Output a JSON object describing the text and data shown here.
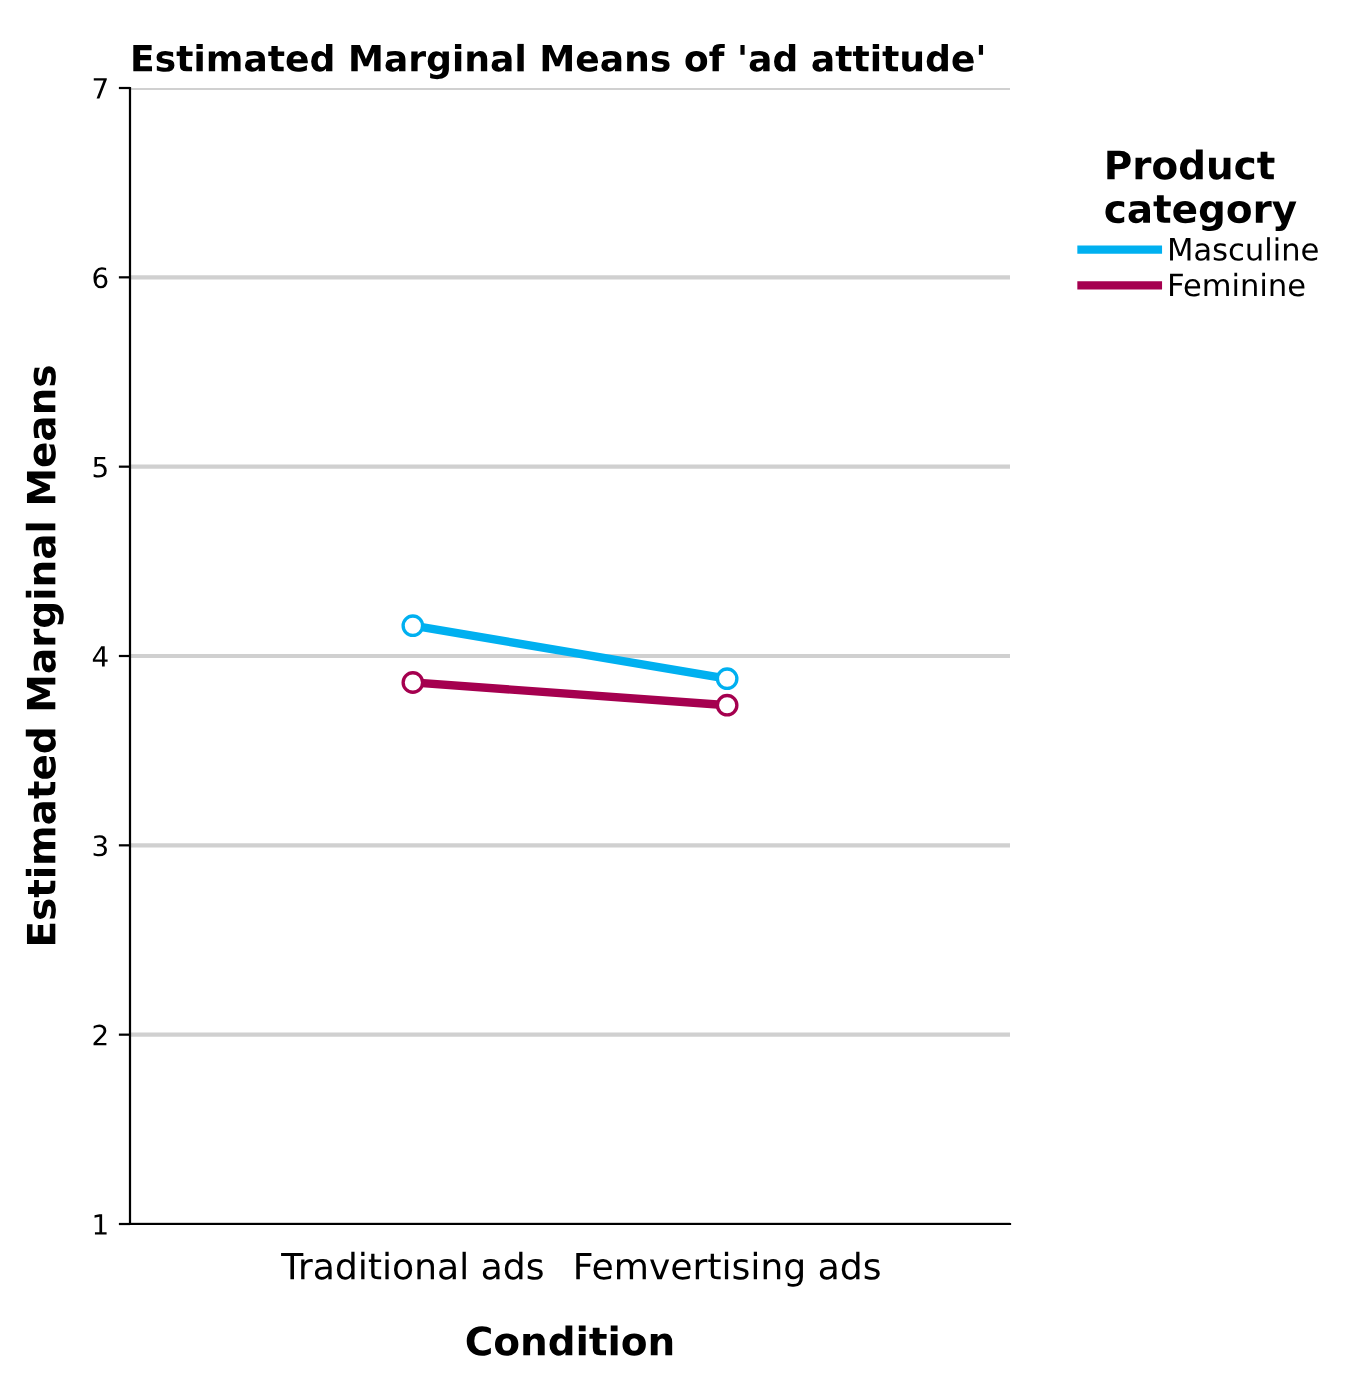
{
  "chart_data": {
    "type": "line",
    "title": "Estimated Marginal Means of 'ad attitude'",
    "xlabel": "Condition",
    "ylabel": "Estimated Marginal Means",
    "legend_title": "Product category",
    "categories": [
      "Traditional ads",
      "Femvertising ads"
    ],
    "series": [
      {
        "name": "Masculine",
        "color": "#00b0f0",
        "values": [
          4.16,
          3.88
        ]
      },
      {
        "name": "Feminine",
        "color": "#a5004f",
        "values": [
          3.86,
          3.74
        ]
      }
    ],
    "ylim": [
      1,
      7
    ],
    "yticks": [
      1,
      2,
      3,
      4,
      5,
      6,
      7
    ],
    "grid": "y",
    "legend": "top right",
    "marker": "circle",
    "line_style": "solid"
  }
}
